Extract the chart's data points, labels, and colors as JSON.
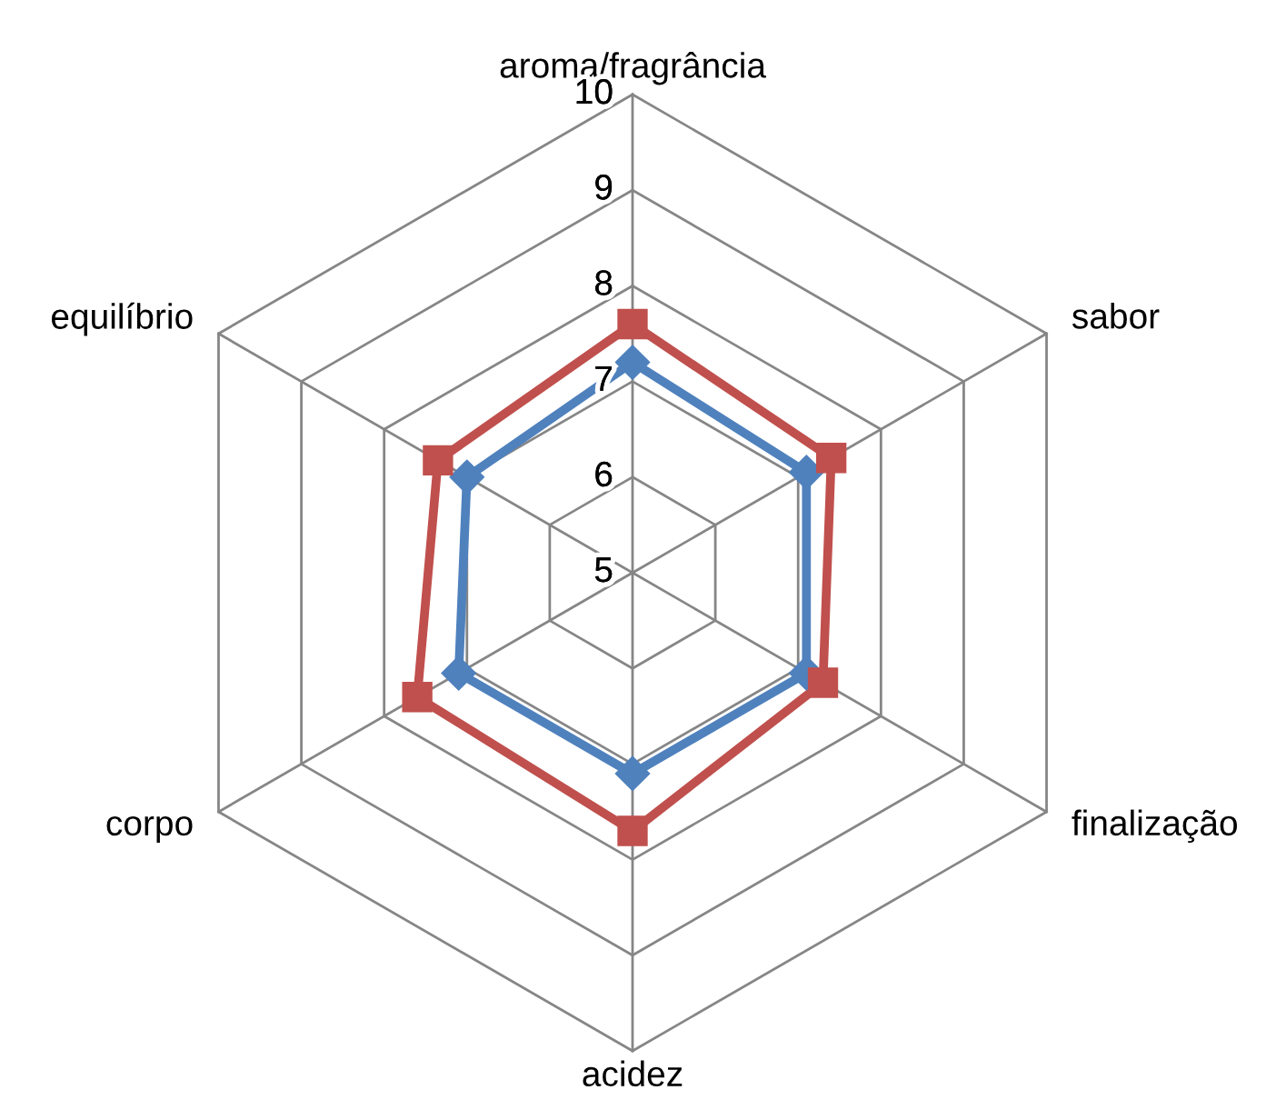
{
  "chart_data": {
    "type": "radar",
    "categories": [
      "aroma/fragrância",
      "sabor",
      "finalização",
      "acidez",
      "corpo",
      "equilíbrio"
    ],
    "ylim": [
      5,
      10
    ],
    "yticks": [
      5,
      6,
      7,
      8,
      9,
      10
    ],
    "grid": true,
    "line_style": "solid",
    "series": [
      {
        "color": "#4f81bd",
        "marker": "diamond",
        "values": [
          7.2,
          7.1,
          7.1,
          7.1,
          7.1,
          7.0
        ]
      },
      {
        "color": "#c0504d",
        "marker": "square",
        "values": [
          7.6,
          7.4,
          7.3,
          7.7,
          7.6,
          7.35
        ]
      }
    ]
  }
}
